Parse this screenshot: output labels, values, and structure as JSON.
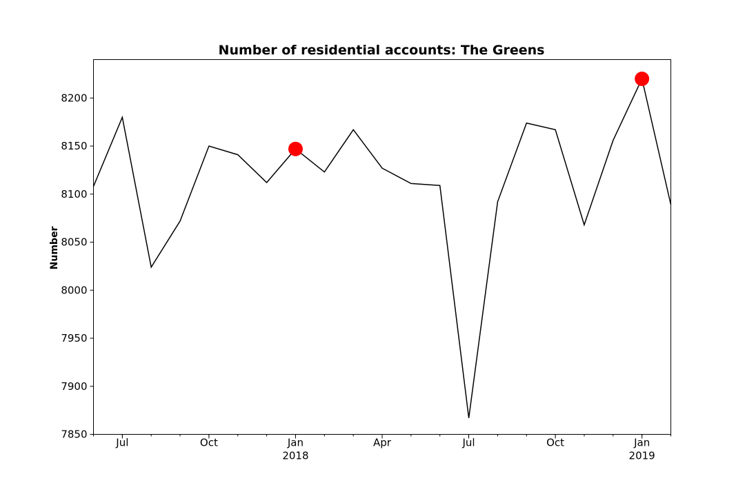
{
  "chart_data": {
    "type": "line",
    "title": "Number of residential accounts: The Greens",
    "xlabel": "",
    "ylabel": "Number",
    "x": [
      "2017-06",
      "2017-07",
      "2017-08",
      "2017-09",
      "2017-10",
      "2017-11",
      "2017-12",
      "2018-01",
      "2018-02",
      "2018-03",
      "2018-04",
      "2018-05",
      "2018-06",
      "2018-07",
      "2018-08",
      "2018-09",
      "2018-10",
      "2018-11",
      "2018-12",
      "2019-01",
      "2019-02"
    ],
    "series": [
      {
        "values": [
          8108,
          8180,
          8024,
          8072,
          8150,
          8141,
          8112,
          8147,
          8123,
          8167,
          8127,
          8111,
          8109,
          7867,
          8092,
          8174,
          8167,
          8068,
          8156,
          8220,
          8089
        ],
        "color": "#000000"
      }
    ],
    "highlighted_points": [
      {
        "x": "2018-01",
        "y": 8147,
        "color": "#ff0000"
      },
      {
        "x": "2019-01",
        "y": 8220,
        "color": "#ff0000"
      }
    ],
    "xlim": [
      "2017-06",
      "2019-02"
    ],
    "ylim": [
      7850,
      8240
    ],
    "yticks": [
      7850,
      7900,
      7950,
      8000,
      8050,
      8100,
      8150,
      8200
    ],
    "xticks": [
      {
        "x": "2017-07",
        "label": "Jul",
        "sublabel": ""
      },
      {
        "x": "2017-10",
        "label": "Oct",
        "sublabel": ""
      },
      {
        "x": "2018-01",
        "label": "Jan",
        "sublabel": "2018"
      },
      {
        "x": "2018-04",
        "label": "Apr",
        "sublabel": ""
      },
      {
        "x": "2018-07",
        "label": "Jul",
        "sublabel": ""
      },
      {
        "x": "2018-10",
        "label": "Oct",
        "sublabel": ""
      },
      {
        "x": "2019-01",
        "label": "Jan",
        "sublabel": "2019"
      }
    ],
    "grid": false,
    "legend": "none"
  }
}
